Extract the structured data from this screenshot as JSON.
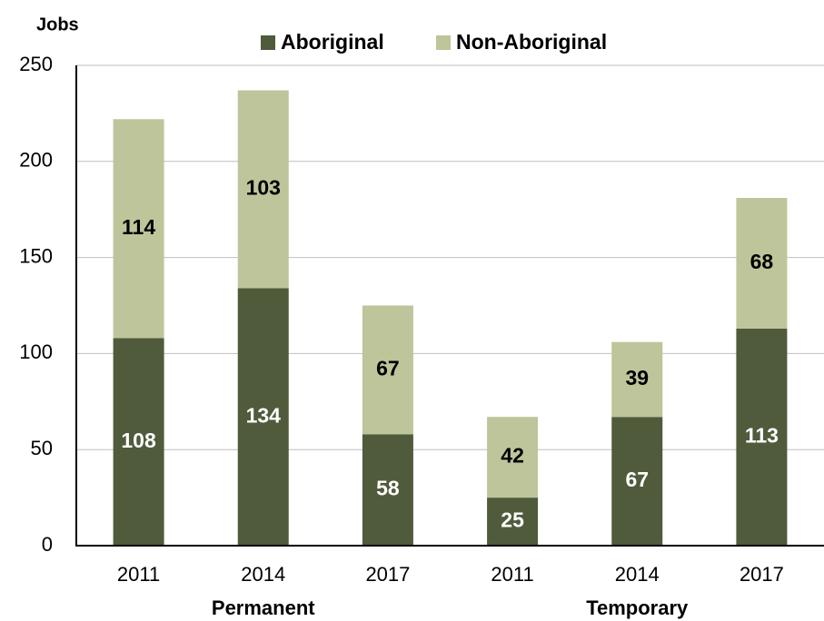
{
  "chart_data": {
    "type": "stacked_bar",
    "y_label": "Jobs",
    "categories": [
      "2011",
      "2014",
      "2017",
      "2011",
      "2014",
      "2017"
    ],
    "group_labels": [
      "Permanent",
      "Temporary"
    ],
    "series": [
      {
        "name": "Aboriginal",
        "color": "#4f5b3b",
        "values": [
          108,
          134,
          58,
          25,
          67,
          113
        ]
      },
      {
        "name": "Non-Aboriginal",
        "color": "#bec59a",
        "values": [
          114,
          103,
          67,
          42,
          39,
          68
        ]
      }
    ],
    "ylim": [
      0,
      250
    ],
    "yticks": [
      0,
      50,
      100,
      150,
      200,
      250
    ],
    "grid": true,
    "legend": "top"
  }
}
